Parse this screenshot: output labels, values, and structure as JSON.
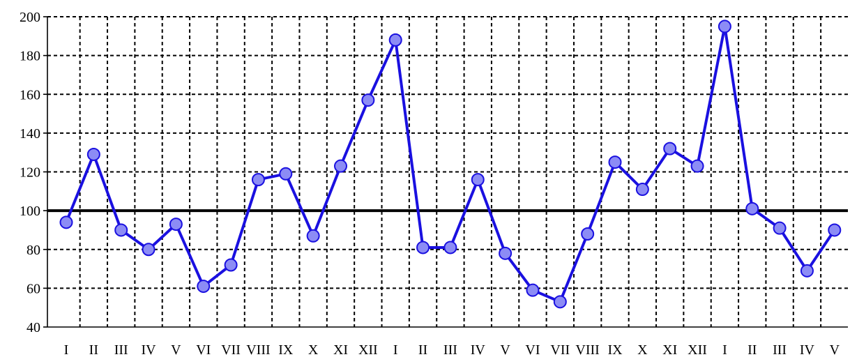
{
  "chart_data": {
    "type": "line",
    "title": "",
    "xlabel": "",
    "ylabel": "",
    "ylim": [
      40,
      200
    ],
    "yticks": [
      40,
      60,
      80,
      100,
      120,
      140,
      160,
      180,
      200
    ],
    "reference_line": 100,
    "grid": true,
    "categories": [
      "I",
      "II",
      "III",
      "IV",
      "V",
      "VI",
      "VII",
      "VIII",
      "IX",
      "X",
      "XI",
      "XII",
      "I",
      "II",
      "III",
      "IV",
      "V",
      "VI",
      "VII",
      "VIII",
      "IX",
      "X",
      "XI",
      "XII",
      "I",
      "II",
      "III",
      "IV",
      "V"
    ],
    "series": [
      {
        "values": [
          94,
          129,
          90,
          80,
          93,
          61,
          72,
          116,
          119,
          87,
          123,
          157,
          188,
          81,
          81,
          116,
          78,
          59,
          53,
          88,
          125,
          111,
          132,
          123,
          195,
          101,
          91,
          69,
          90
        ],
        "color": "#1a10e0",
        "marker_fill": "#8c8cf5"
      }
    ]
  }
}
